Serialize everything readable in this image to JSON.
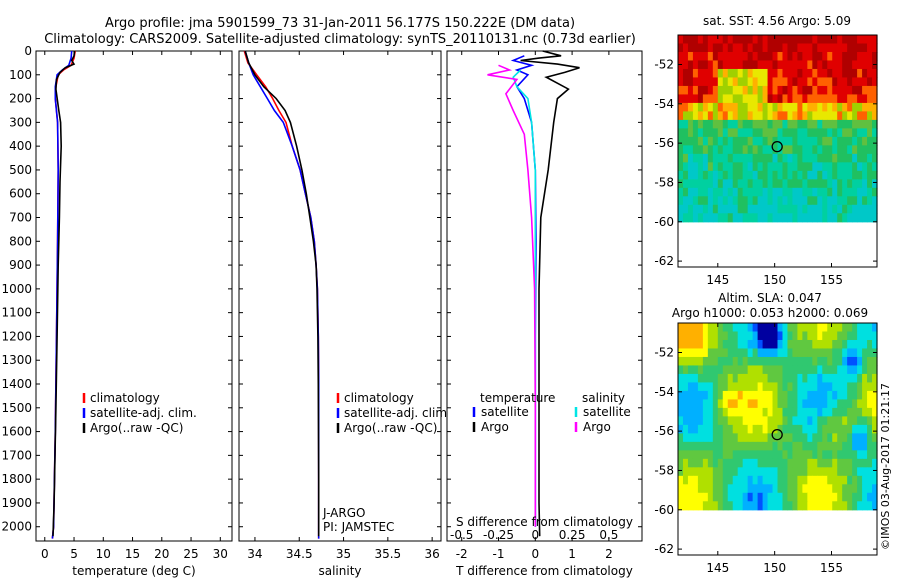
{
  "header": {
    "line1": "Argo profile: jma 5901599_73 31-Jan-2011 56.177S 150.222E (DM data)",
    "line2": "Climatology: CARS2009. Satellite-adjusted climatology: synTS_20110131.nc (0.73d earlier)"
  },
  "colors": {
    "clim": "#ff0000",
    "sat": "#0000ff",
    "argo": "#000000",
    "sat_s": "#00e5e5",
    "argo_s": "#ff00ff"
  },
  "chart_data": [
    {
      "type": "line",
      "panel": "temperature",
      "xlabel": "temperature (deg C)",
      "xlim": [
        -1.5,
        32
      ],
      "xticks": [
        0,
        5,
        10,
        15,
        20,
        25,
        30
      ],
      "ylim": [
        2060,
        0
      ],
      "yticks": [
        0,
        100,
        200,
        300,
        400,
        500,
        600,
        700,
        800,
        900,
        1000,
        1100,
        1200,
        1300,
        1400,
        1500,
        1600,
        1700,
        1800,
        1900,
        2000
      ],
      "legend": [
        "climatology",
        "satellite-adj. clim.",
        "Argo(..raw -QC)"
      ],
      "series": [
        {
          "name": "climatology",
          "color": "clim",
          "points": [
            [
              5.2,
              0
            ],
            [
              5.0,
              30
            ],
            [
              4.5,
              60
            ],
            [
              3.2,
              80
            ],
            [
              2.3,
              100
            ],
            [
              1.9,
              150
            ],
            [
              1.8,
              200
            ],
            [
              2.2,
              300
            ],
            [
              2.3,
              500
            ],
            [
              2.2,
              800
            ],
            [
              2.0,
              1200
            ],
            [
              1.8,
              1600
            ],
            [
              1.5,
              2000
            ],
            [
              1.3,
              2050
            ]
          ]
        },
        {
          "name": "satellite-adj. clim.",
          "color": "sat",
          "points": [
            [
              4.6,
              0
            ],
            [
              4.5,
              30
            ],
            [
              4.1,
              60
            ],
            [
              3.0,
              80
            ],
            [
              2.1,
              100
            ],
            [
              1.8,
              150
            ],
            [
              1.8,
              200
            ],
            [
              2.2,
              300
            ],
            [
              2.3,
              500
            ],
            [
              2.2,
              800
            ],
            [
              2.0,
              1200
            ],
            [
              1.8,
              1600
            ],
            [
              1.5,
              2000
            ],
            [
              1.3,
              2050
            ]
          ]
        },
        {
          "name": "Argo(..raw -QC)",
          "color": "argo",
          "points": [
            [
              5.1,
              0
            ],
            [
              5.0,
              20
            ],
            [
              4.6,
              40
            ],
            [
              5.0,
              55
            ],
            [
              3.5,
              70
            ],
            [
              2.6,
              90
            ],
            [
              2.0,
              120
            ],
            [
              1.9,
              160
            ],
            [
              2.4,
              250
            ],
            [
              2.7,
              300
            ],
            [
              2.8,
              400
            ],
            [
              2.6,
              550
            ],
            [
              2.5,
              700
            ],
            [
              2.3,
              900
            ],
            [
              2.1,
              1200
            ],
            [
              1.9,
              1500
            ],
            [
              1.6,
              1900
            ],
            [
              1.4,
              2040
            ]
          ]
        }
      ]
    },
    {
      "type": "line",
      "panel": "salinity",
      "xlabel": "salinity",
      "xlim": [
        33.82,
        36.1
      ],
      "xticks": [
        34,
        34.5,
        35,
        35.5,
        36
      ],
      "tick_labels": [
        "34",
        "34.5",
        "35",
        "35.5",
        "36"
      ],
      "ylim": [
        2060,
        0
      ],
      "legend": [
        "climatology",
        "satellite-adj. clim.",
        "Argo(..raw -QC)"
      ],
      "annotations": [
        "J-ARGO",
        "PI: JAMSTEC"
      ],
      "series": [
        {
          "name": "climatology",
          "color": "clim",
          "points": [
            [
              33.88,
              0
            ],
            [
              33.92,
              50
            ],
            [
              34.02,
              100
            ],
            [
              34.12,
              150
            ],
            [
              34.2,
              200
            ],
            [
              34.27,
              250
            ],
            [
              34.35,
              300
            ],
            [
              34.42,
              400
            ],
            [
              34.51,
              500
            ],
            [
              34.57,
              600
            ],
            [
              34.63,
              700
            ],
            [
              34.67,
              800
            ],
            [
              34.69,
              900
            ],
            [
              34.705,
              1000
            ],
            [
              34.715,
              1200
            ],
            [
              34.72,
              1400
            ],
            [
              34.72,
              1800
            ],
            [
              34.72,
              2050
            ]
          ]
        },
        {
          "name": "satellite-adj. clim.",
          "color": "sat",
          "points": [
            [
              33.89,
              0
            ],
            [
              33.93,
              50
            ],
            [
              33.98,
              100
            ],
            [
              34.06,
              150
            ],
            [
              34.14,
              200
            ],
            [
              34.22,
              250
            ],
            [
              34.32,
              300
            ],
            [
              34.42,
              400
            ],
            [
              34.51,
              500
            ],
            [
              34.57,
              600
            ],
            [
              34.63,
              700
            ],
            [
              34.67,
              800
            ],
            [
              34.69,
              900
            ],
            [
              34.705,
              1000
            ],
            [
              34.715,
              1200
            ],
            [
              34.72,
              1400
            ],
            [
              34.72,
              1800
            ],
            [
              34.72,
              2050
            ]
          ]
        },
        {
          "name": "Argo(..raw -QC)",
          "color": "argo",
          "points": [
            [
              33.89,
              0
            ],
            [
              33.93,
              50
            ],
            [
              34.0,
              100
            ],
            [
              34.1,
              150
            ],
            [
              34.24,
              200
            ],
            [
              34.34,
              250
            ],
            [
              34.4,
              300
            ],
            [
              34.47,
              400
            ],
            [
              34.53,
              500
            ],
            [
              34.58,
              600
            ],
            [
              34.62,
              700
            ],
            [
              34.66,
              800
            ],
            [
              34.69,
              900
            ],
            [
              34.7,
              1000
            ],
            [
              34.71,
              1200
            ],
            [
              34.715,
              1400
            ],
            [
              34.72,
              1800
            ],
            [
              34.72,
              2040
            ]
          ]
        }
      ]
    },
    {
      "type": "line",
      "panel": "difference",
      "xlabel": "T difference from climatology",
      "xlim": [
        -2.4,
        2.9
      ],
      "xticks": [
        -2,
        -1,
        0,
        1,
        2
      ],
      "ylim": [
        2060,
        0
      ],
      "sec_xlabel": "S difference from climatology",
      "sec_ticks": [
        "-0.5",
        "-0.25",
        "0",
        "0.25",
        "0.5"
      ],
      "sec_tick_pos": [
        -2,
        -1,
        0,
        1,
        2
      ],
      "legend_headers": [
        "temperature",
        "salinity"
      ],
      "legend": [
        "satellite",
        "Argo",
        "satellite",
        "Argo"
      ],
      "series": [
        {
          "name": "temperature satellite",
          "color": "sat",
          "points": [
            [
              -0.3,
              20
            ],
            [
              -0.6,
              40
            ],
            [
              -0.1,
              60
            ],
            [
              -0.5,
              80
            ],
            [
              -0.2,
              100
            ],
            [
              -0.5,
              150
            ],
            [
              -0.3,
              200
            ],
            [
              -0.1,
              300
            ],
            [
              0.0,
              500
            ],
            [
              0.02,
              800
            ],
            [
              0.0,
              1200
            ],
            [
              0.0,
              2000
            ]
          ]
        },
        {
          "name": "temperature Argo",
          "color": "argo",
          "points": [
            [
              0.2,
              0
            ],
            [
              0.7,
              20
            ],
            [
              0.1,
              30
            ],
            [
              -0.4,
              40
            ],
            [
              0.6,
              55
            ],
            [
              1.2,
              70
            ],
            [
              0.8,
              90
            ],
            [
              0.3,
              110
            ],
            [
              0.9,
              160
            ],
            [
              0.6,
              200
            ],
            [
              0.5,
              300
            ],
            [
              0.35,
              500
            ],
            [
              0.15,
              700
            ],
            [
              0.1,
              1000
            ],
            [
              0.1,
              1300
            ],
            [
              0.1,
              1600
            ],
            [
              0.1,
              1900
            ],
            [
              0.12,
              2040
            ]
          ]
        },
        {
          "name": "salinity satellite",
          "color": "sat_s",
          "points": [
            [
              -0.4,
              80
            ],
            [
              -0.6,
              110
            ],
            [
              -0.5,
              150
            ],
            [
              -0.2,
              200
            ],
            [
              -0.1,
              300
            ],
            [
              0.0,
              500
            ],
            [
              0.0,
              800
            ],
            [
              0.0,
              1200
            ],
            [
              0.0,
              2000
            ]
          ]
        },
        {
          "name": "salinity Argo",
          "color": "argo_s",
          "points": [
            [
              -1.0,
              60
            ],
            [
              -0.7,
              80
            ],
            [
              -1.3,
              100
            ],
            [
              -0.5,
              120
            ],
            [
              -0.8,
              180
            ],
            [
              -0.6,
              250
            ],
            [
              -0.3,
              350
            ],
            [
              -0.2,
              500
            ],
            [
              -0.1,
              700
            ],
            [
              -0.02,
              1000
            ],
            [
              0.0,
              1500
            ],
            [
              0.0,
              2000
            ]
          ]
        }
      ]
    },
    {
      "type": "heatmap",
      "panel": "sst_map",
      "title": "sat. SST: 4.56 Argo: 5.09",
      "xlim": [
        141.5,
        159
      ],
      "xticks": [
        145,
        150,
        155
      ],
      "ylim": [
        -62.3,
        -50.5
      ],
      "yticks": [
        -52,
        -54,
        -56,
        -58,
        -60,
        -62
      ],
      "data_ylim": [
        -60,
        -50.5
      ],
      "marker": [
        150.222,
        -56.177
      ]
    },
    {
      "type": "heatmap",
      "panel": "sla_map",
      "title_line1": "Altim. SLA: 0.047",
      "title_line2": "Argo h1000: 0.053 h2000: 0.069",
      "xlim": [
        141.5,
        159
      ],
      "xticks": [
        145,
        150,
        155
      ],
      "ylim": [
        -62.3,
        -50.5
      ],
      "yticks": [
        -52,
        -54,
        -56,
        -58,
        -60,
        -62
      ],
      "data_ylim": [
        -60,
        -50.5
      ],
      "marker": [
        150.222,
        -56.177
      ]
    }
  ],
  "credit": "©IMOS 03-Aug-2017 01:21:17"
}
